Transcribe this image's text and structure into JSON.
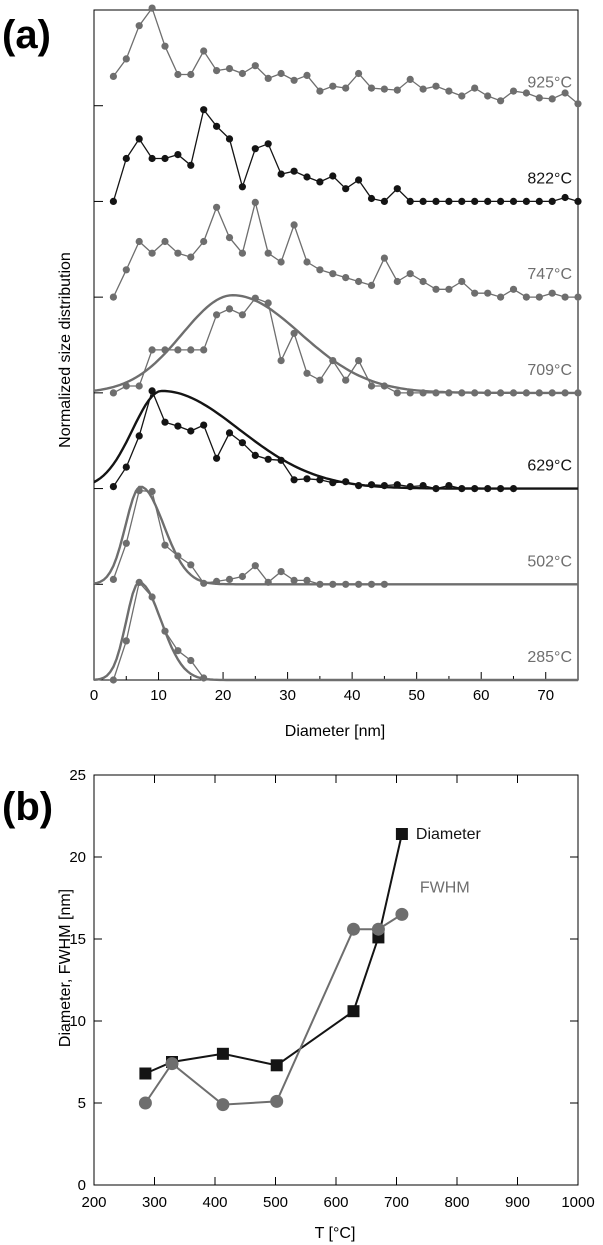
{
  "chart_data": [
    {
      "panel": "(a)",
      "type": "line",
      "title": "",
      "xlabel": "Diameter [nm]",
      "ylabel": "Normalized size distribution",
      "xlim": [
        0,
        75
      ],
      "xticks": [
        0,
        10,
        20,
        30,
        40,
        50,
        60,
        70
      ],
      "layout": "stacked offset curves, one baseline tick per curve on left axis",
      "colors": {
        "gray": "#6e6e6e",
        "black": "#141414"
      },
      "series": [
        {
          "name": "925°C",
          "color": "gray",
          "points": [
            [
              3,
              0.3
            ],
            [
              5,
              0.48
            ],
            [
              7,
              0.82
            ],
            [
              9,
              1.0
            ],
            [
              11,
              0.61
            ],
            [
              13,
              0.32
            ],
            [
              15,
              0.32
            ],
            [
              17,
              0.56
            ],
            [
              19,
              0.36
            ],
            [
              21,
              0.38
            ],
            [
              23,
              0.33
            ],
            [
              25,
              0.41
            ],
            [
              27,
              0.28
            ],
            [
              29,
              0.33
            ],
            [
              31,
              0.26
            ],
            [
              33,
              0.31
            ],
            [
              35,
              0.15
            ],
            [
              37,
              0.2
            ],
            [
              39,
              0.18
            ],
            [
              41,
              0.33
            ],
            [
              43,
              0.18
            ],
            [
              45,
              0.17
            ],
            [
              47,
              0.16
            ],
            [
              49,
              0.27
            ],
            [
              51,
              0.17
            ],
            [
              53,
              0.2
            ],
            [
              55,
              0.15
            ],
            [
              57,
              0.1
            ],
            [
              59,
              0.18
            ],
            [
              61,
              0.1
            ],
            [
              63,
              0.05
            ],
            [
              65,
              0.15
            ],
            [
              67,
              0.13
            ],
            [
              69,
              0.08
            ],
            [
              71,
              0.07
            ],
            [
              73,
              0.13
            ],
            [
              75,
              0.02
            ]
          ]
        },
        {
          "name": "822°C",
          "color": "black",
          "points": [
            [
              3,
              0.0
            ],
            [
              5,
              0.44
            ],
            [
              7,
              0.64
            ],
            [
              9,
              0.44
            ],
            [
              11,
              0.44
            ],
            [
              13,
              0.48
            ],
            [
              15,
              0.37
            ],
            [
              17,
              0.94
            ],
            [
              19,
              0.77
            ],
            [
              21,
              0.64
            ],
            [
              23,
              0.15
            ],
            [
              25,
              0.54
            ],
            [
              27,
              0.59
            ],
            [
              29,
              0.28
            ],
            [
              31,
              0.31
            ],
            [
              33,
              0.25
            ],
            [
              35,
              0.2
            ],
            [
              37,
              0.26
            ],
            [
              39,
              0.13
            ],
            [
              41,
              0.22
            ],
            [
              43,
              0.03
            ],
            [
              45,
              0.0
            ],
            [
              47,
              0.13
            ],
            [
              49,
              0.0
            ],
            [
              51,
              0.0
            ],
            [
              53,
              0.0
            ],
            [
              55,
              0.0
            ],
            [
              57,
              0.0
            ],
            [
              59,
              0.0
            ],
            [
              61,
              0.0
            ],
            [
              63,
              0.0
            ],
            [
              65,
              0.0
            ],
            [
              67,
              0.0
            ],
            [
              69,
              0.0
            ],
            [
              71,
              0.0
            ],
            [
              73,
              0.04
            ],
            [
              75,
              0.0
            ]
          ]
        },
        {
          "name": "747°C",
          "color": "gray",
          "points": [
            [
              3,
              0.0
            ],
            [
              5,
              0.28
            ],
            [
              7,
              0.57
            ],
            [
              9,
              0.45
            ],
            [
              11,
              0.57
            ],
            [
              13,
              0.45
            ],
            [
              15,
              0.41
            ],
            [
              17,
              0.57
            ],
            [
              19,
              0.92
            ],
            [
              21,
              0.61
            ],
            [
              23,
              0.45
            ],
            [
              25,
              0.97
            ],
            [
              27,
              0.45
            ],
            [
              29,
              0.36
            ],
            [
              31,
              0.74
            ],
            [
              33,
              0.36
            ],
            [
              35,
              0.28
            ],
            [
              37,
              0.24
            ],
            [
              39,
              0.2
            ],
            [
              41,
              0.16
            ],
            [
              43,
              0.12
            ],
            [
              45,
              0.4
            ],
            [
              47,
              0.16
            ],
            [
              49,
              0.24
            ],
            [
              51,
              0.16
            ],
            [
              53,
              0.08
            ],
            [
              55,
              0.08
            ],
            [
              57,
              0.16
            ],
            [
              59,
              0.04
            ],
            [
              61,
              0.04
            ],
            [
              63,
              0.0
            ],
            [
              65,
              0.08
            ],
            [
              67,
              0.0
            ],
            [
              69,
              0.0
            ],
            [
              71,
              0.04
            ],
            [
              73,
              0.0
            ],
            [
              75,
              0.0
            ]
          ]
        },
        {
          "name": "709°C",
          "color": "gray",
          "points": [
            [
              3,
              0.0
            ],
            [
              5,
              0.07
            ],
            [
              7,
              0.07
            ],
            [
              9,
              0.44
            ],
            [
              11,
              0.44
            ],
            [
              13,
              0.44
            ],
            [
              15,
              0.44
            ],
            [
              17,
              0.44
            ],
            [
              19,
              0.8
            ],
            [
              21,
              0.86
            ],
            [
              23,
              0.8
            ],
            [
              25,
              0.97
            ],
            [
              27,
              0.92
            ],
            [
              29,
              0.33
            ],
            [
              31,
              0.61
            ],
            [
              33,
              0.2
            ],
            [
              35,
              0.13
            ],
            [
              37,
              0.33
            ],
            [
              39,
              0.13
            ],
            [
              41,
              0.33
            ],
            [
              43,
              0.07
            ],
            [
              45,
              0.07
            ],
            [
              47,
              0.0
            ],
            [
              49,
              0.0
            ],
            [
              51,
              0.0
            ],
            [
              53,
              0.0
            ],
            [
              55,
              0.0
            ],
            [
              57,
              0.0
            ],
            [
              59,
              0.0
            ],
            [
              61,
              0.0
            ],
            [
              63,
              0.0
            ],
            [
              65,
              0.0
            ],
            [
              67,
              0.0
            ],
            [
              69,
              0.0
            ],
            [
              71,
              0.0
            ],
            [
              73,
              0.0
            ],
            [
              75,
              0.0
            ]
          ],
          "fit": {
            "peak": 21.5,
            "width_left": 7.8,
            "width_right": 10.5,
            "amp": 1.0
          }
        },
        {
          "name": "629°C",
          "color": "black",
          "points": [
            [
              3,
              0.02
            ],
            [
              5,
              0.22
            ],
            [
              7,
              0.54
            ],
            [
              9,
              1.0
            ],
            [
              11,
              0.68
            ],
            [
              13,
              0.64
            ],
            [
              15,
              0.59
            ],
            [
              17,
              0.65
            ],
            [
              19,
              0.31
            ],
            [
              21,
              0.57
            ],
            [
              23,
              0.47
            ],
            [
              25,
              0.34
            ],
            [
              27,
              0.3
            ],
            [
              29,
              0.29
            ],
            [
              31,
              0.09
            ],
            [
              33,
              0.1
            ],
            [
              35,
              0.09
            ],
            [
              37,
              0.06
            ],
            [
              39,
              0.07
            ],
            [
              41,
              0.03
            ],
            [
              43,
              0.04
            ],
            [
              45,
              0.03
            ],
            [
              47,
              0.04
            ],
            [
              49,
              0.02
            ],
            [
              51,
              0.03
            ],
            [
              53,
              0.0
            ],
            [
              55,
              0.03
            ],
            [
              57,
              0.0
            ],
            [
              59,
              0.0
            ],
            [
              61,
              0.0
            ],
            [
              63,
              0.0
            ],
            [
              65,
              0.0
            ]
          ],
          "fit": {
            "peak": 10.5,
            "width_left": 4.5,
            "width_right": 12.0,
            "amp": 1.0
          }
        },
        {
          "name": "502°C",
          "color": "gray",
          "points": [
            [
              3,
              0.05
            ],
            [
              5,
              0.42
            ],
            [
              7,
              0.96
            ],
            [
              9,
              0.95
            ],
            [
              11,
              0.4
            ],
            [
              13,
              0.29
            ],
            [
              15,
              0.2
            ],
            [
              17,
              0.01
            ],
            [
              19,
              0.03
            ],
            [
              21,
              0.05
            ],
            [
              23,
              0.08
            ],
            [
              25,
              0.19
            ],
            [
              27,
              0.02
            ],
            [
              29,
              0.13
            ],
            [
              31,
              0.04
            ],
            [
              33,
              0.04
            ],
            [
              35,
              0.0
            ],
            [
              37,
              0.0
            ],
            [
              39,
              0.0
            ],
            [
              41,
              0.0
            ],
            [
              43,
              0.0
            ],
            [
              45,
              0.0
            ]
          ],
          "fit": {
            "peak": 7.2,
            "width_left": 2.3,
            "width_right": 3.6,
            "amp": 1.0
          }
        },
        {
          "name": "285°C",
          "color": "gray",
          "points": [
            [
              3,
              0.0
            ],
            [
              5,
              0.4
            ],
            [
              7,
              1.0
            ],
            [
              9,
              0.85
            ],
            [
              11,
              0.5
            ],
            [
              13,
              0.3
            ],
            [
              15,
              0.2
            ],
            [
              17,
              0.02
            ]
          ],
          "fit": {
            "peak": 7.0,
            "width_left": 2.0,
            "width_right": 3.4,
            "amp": 1.0
          }
        }
      ]
    },
    {
      "panel": "(b)",
      "type": "line",
      "title": "",
      "xlabel": "T [°C]",
      "ylabel": "Diameter, FWHM [nm]",
      "xlim": [
        200,
        1000
      ],
      "ylim": [
        0,
        25
      ],
      "xticks": [
        200,
        300,
        400,
        500,
        600,
        700,
        800,
        900,
        1000
      ],
      "yticks": [
        0,
        5,
        10,
        15,
        20,
        25
      ],
      "legend": "inline right of series ends",
      "series": [
        {
          "name": "Diameter",
          "marker": "square",
          "color": "#141414",
          "x": [
            285,
            329,
            413,
            502,
            629,
            670,
            709
          ],
          "y": [
            6.8,
            7.5,
            8.0,
            7.3,
            10.6,
            15.1,
            21.4
          ]
        },
        {
          "name": "FWHM",
          "marker": "circle",
          "color": "#6e6e6e",
          "x": [
            285,
            329,
            413,
            502,
            629,
            670,
            709
          ],
          "y": [
            5.0,
            7.4,
            4.9,
            5.1,
            15.6,
            15.6,
            16.5
          ]
        }
      ]
    }
  ]
}
